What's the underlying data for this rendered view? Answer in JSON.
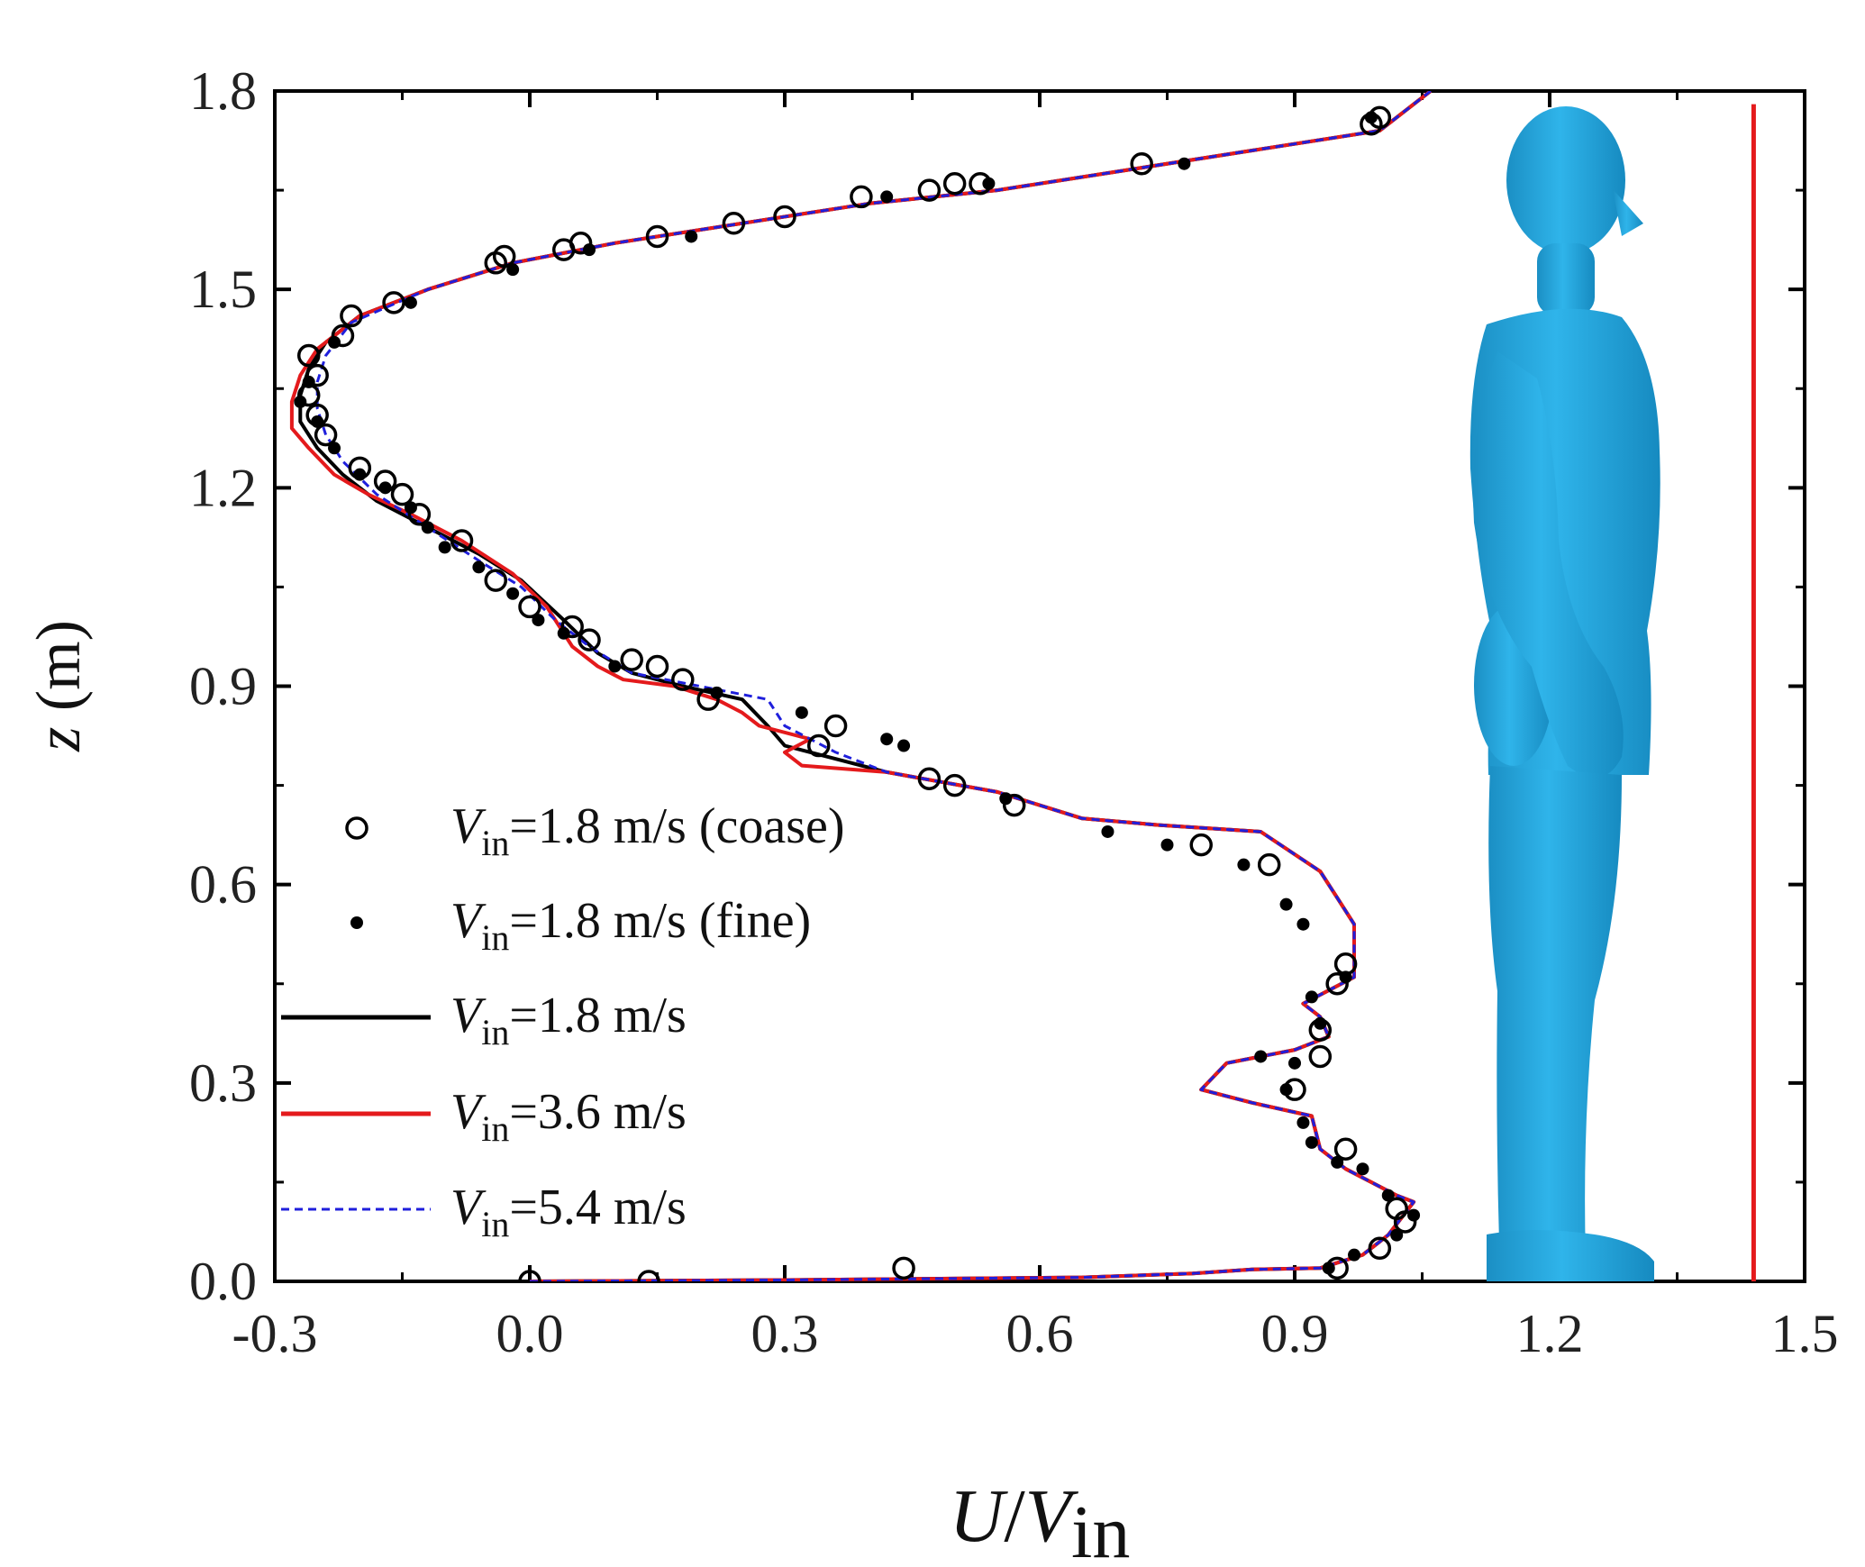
{
  "chart_data": {
    "type": "line",
    "title": "",
    "xlabel": {
      "main": "U",
      "sep": "/",
      "var": "V",
      "sub": "in"
    },
    "ylabel": {
      "var": "z",
      "unit": " (m)"
    },
    "xlim": [
      -0.3,
      1.5
    ],
    "ylim": [
      0.0,
      1.8
    ],
    "xticks": [
      "-0.3",
      "0.0",
      "0.3",
      "0.6",
      "0.9",
      "1.2",
      "1.5"
    ],
    "yticks": [
      "0.0",
      "0.3",
      "0.6",
      "0.9",
      "1.2",
      "1.5",
      "1.8"
    ],
    "legend_position": "lower-left",
    "series": [
      {
        "name": "Vin=1.8 m/s (coase)",
        "label_var": "V",
        "label_sub": "in",
        "label_rest": "=1.8 m/s (coase)",
        "kind": "scatter",
        "marker": "open-circle",
        "color": "#000000",
        "points": [
          [
            0.0,
            0.0
          ],
          [
            0.14,
            0.0
          ],
          [
            0.44,
            0.02
          ],
          [
            0.95,
            0.02
          ],
          [
            1.0,
            0.05
          ],
          [
            1.03,
            0.09
          ],
          [
            1.02,
            0.11
          ],
          [
            0.96,
            0.2
          ],
          [
            0.9,
            0.29
          ],
          [
            0.93,
            0.34
          ],
          [
            0.93,
            0.38
          ],
          [
            0.95,
            0.45
          ],
          [
            0.96,
            0.48
          ],
          [
            0.87,
            0.63
          ],
          [
            0.79,
            0.66
          ],
          [
            0.57,
            0.72
          ],
          [
            0.5,
            0.75
          ],
          [
            0.47,
            0.76
          ],
          [
            0.36,
            0.84
          ],
          [
            0.34,
            0.81
          ],
          [
            0.21,
            0.88
          ],
          [
            0.18,
            0.91
          ],
          [
            0.15,
            0.93
          ],
          [
            0.12,
            0.94
          ],
          [
            0.07,
            0.97
          ],
          [
            0.05,
            0.99
          ],
          [
            0.0,
            1.02
          ],
          [
            -0.04,
            1.06
          ],
          [
            -0.08,
            1.12
          ],
          [
            -0.13,
            1.16
          ],
          [
            -0.15,
            1.19
          ],
          [
            -0.17,
            1.21
          ],
          [
            -0.2,
            1.23
          ],
          [
            -0.24,
            1.28
          ],
          [
            -0.25,
            1.31
          ],
          [
            -0.26,
            1.34
          ],
          [
            -0.25,
            1.37
          ],
          [
            -0.26,
            1.4
          ],
          [
            -0.22,
            1.43
          ],
          [
            -0.21,
            1.46
          ],
          [
            -0.16,
            1.48
          ],
          [
            -0.03,
            1.55
          ],
          [
            -0.04,
            1.54
          ],
          [
            0.04,
            1.56
          ],
          [
            0.06,
            1.57
          ],
          [
            0.15,
            1.58
          ],
          [
            0.24,
            1.6
          ],
          [
            0.3,
            1.61
          ],
          [
            0.39,
            1.64
          ],
          [
            0.47,
            1.65
          ],
          [
            0.5,
            1.66
          ],
          [
            0.53,
            1.66
          ],
          [
            0.72,
            1.69
          ],
          [
            1.0,
            1.76
          ],
          [
            0.99,
            1.75
          ]
        ]
      },
      {
        "name": "Vin=1.8 m/s (fine)",
        "label_var": "V",
        "label_sub": "in",
        "label_rest": "=1.8 m/s (fine)",
        "kind": "scatter",
        "marker": "filled-dot",
        "color": "#000000",
        "points": [
          [
            0.94,
            0.02
          ],
          [
            0.97,
            0.04
          ],
          [
            1.02,
            0.07
          ],
          [
            1.04,
            0.1
          ],
          [
            1.01,
            0.13
          ],
          [
            0.98,
            0.17
          ],
          [
            0.95,
            0.18
          ],
          [
            0.92,
            0.21
          ],
          [
            0.91,
            0.24
          ],
          [
            0.89,
            0.29
          ],
          [
            0.9,
            0.33
          ],
          [
            0.86,
            0.34
          ],
          [
            0.93,
            0.39
          ],
          [
            0.92,
            0.43
          ],
          [
            0.96,
            0.46
          ],
          [
            0.91,
            0.54
          ],
          [
            0.89,
            0.57
          ],
          [
            0.84,
            0.63
          ],
          [
            0.75,
            0.66
          ],
          [
            0.68,
            0.68
          ],
          [
            0.56,
            0.73
          ],
          [
            0.44,
            0.81
          ],
          [
            0.42,
            0.82
          ],
          [
            0.32,
            0.86
          ],
          [
            0.22,
            0.89
          ],
          [
            0.1,
            0.93
          ],
          [
            0.04,
            0.98
          ],
          [
            0.01,
            1.0
          ],
          [
            -0.02,
            1.04
          ],
          [
            -0.06,
            1.08
          ],
          [
            -0.1,
            1.11
          ],
          [
            -0.12,
            1.14
          ],
          [
            -0.14,
            1.17
          ],
          [
            -0.17,
            1.2
          ],
          [
            -0.2,
            1.22
          ],
          [
            -0.23,
            1.26
          ],
          [
            -0.25,
            1.3
          ],
          [
            -0.27,
            1.33
          ],
          [
            -0.26,
            1.36
          ],
          [
            -0.23,
            1.42
          ],
          [
            -0.14,
            1.48
          ],
          [
            -0.02,
            1.53
          ],
          [
            0.07,
            1.56
          ],
          [
            0.19,
            1.58
          ],
          [
            0.42,
            1.64
          ],
          [
            0.54,
            1.66
          ],
          [
            0.77,
            1.69
          ],
          [
            0.99,
            1.76
          ]
        ]
      },
      {
        "name": "Vin=1.8 m/s",
        "label_var": "V",
        "label_sub": "in",
        "label_rest": "=1.8 m/s",
        "kind": "line",
        "dash": "solid",
        "color": "#000000",
        "points": [
          [
            0.0,
            0.0
          ],
          [
            0.3,
            0.002
          ],
          [
            0.65,
            0.006
          ],
          [
            0.78,
            0.012
          ],
          [
            0.85,
            0.018
          ],
          [
            0.93,
            0.02
          ],
          [
            0.98,
            0.04
          ],
          [
            1.01,
            0.07
          ],
          [
            1.04,
            0.12
          ],
          [
            1.02,
            0.13
          ],
          [
            0.96,
            0.17
          ],
          [
            0.93,
            0.2
          ],
          [
            0.92,
            0.25
          ],
          [
            0.85,
            0.27
          ],
          [
            0.79,
            0.29
          ],
          [
            0.82,
            0.33
          ],
          [
            0.9,
            0.35
          ],
          [
            0.94,
            0.37
          ],
          [
            0.93,
            0.4
          ],
          [
            0.91,
            0.42
          ],
          [
            0.94,
            0.44
          ],
          [
            0.97,
            0.46
          ],
          [
            0.97,
            0.5
          ],
          [
            0.97,
            0.54
          ],
          [
            0.95,
            0.58
          ],
          [
            0.93,
            0.62
          ],
          [
            0.86,
            0.68
          ],
          [
            0.74,
            0.69
          ],
          [
            0.65,
            0.7
          ],
          [
            0.55,
            0.74
          ],
          [
            0.42,
            0.77
          ],
          [
            0.36,
            0.79
          ],
          [
            0.3,
            0.81
          ],
          [
            0.28,
            0.84
          ],
          [
            0.25,
            0.88
          ],
          [
            0.18,
            0.9
          ],
          [
            0.12,
            0.92
          ],
          [
            0.08,
            0.95
          ],
          [
            0.04,
            1.0
          ],
          [
            -0.01,
            1.06
          ],
          [
            -0.06,
            1.1
          ],
          [
            -0.12,
            1.14
          ],
          [
            -0.18,
            1.18
          ],
          [
            -0.22,
            1.22
          ],
          [
            -0.25,
            1.26
          ],
          [
            -0.27,
            1.3
          ],
          [
            -0.27,
            1.34
          ],
          [
            -0.26,
            1.38
          ],
          [
            -0.24,
            1.42
          ],
          [
            -0.2,
            1.46
          ],
          [
            -0.12,
            1.5
          ],
          [
            -0.02,
            1.54
          ],
          [
            0.1,
            1.57
          ],
          [
            0.25,
            1.6
          ],
          [
            0.4,
            1.63
          ],
          [
            0.55,
            1.65
          ],
          [
            0.7,
            1.68
          ],
          [
            0.85,
            1.71
          ],
          [
            1.0,
            1.74
          ],
          [
            1.06,
            1.8
          ]
        ]
      },
      {
        "name": "Vin=3.6 m/s",
        "label_var": "V",
        "label_sub": "in",
        "label_rest": "=3.6 m/s",
        "kind": "line",
        "dash": "solid",
        "color": "#e41a1c",
        "points": [
          [
            0.0,
            0.0
          ],
          [
            0.3,
            0.002
          ],
          [
            0.65,
            0.006
          ],
          [
            0.78,
            0.012
          ],
          [
            0.85,
            0.018
          ],
          [
            0.93,
            0.02
          ],
          [
            0.98,
            0.04
          ],
          [
            1.01,
            0.07
          ],
          [
            1.04,
            0.12
          ],
          [
            1.02,
            0.13
          ],
          [
            0.96,
            0.17
          ],
          [
            0.93,
            0.2
          ],
          [
            0.92,
            0.25
          ],
          [
            0.85,
            0.27
          ],
          [
            0.79,
            0.29
          ],
          [
            0.82,
            0.33
          ],
          [
            0.9,
            0.35
          ],
          [
            0.94,
            0.37
          ],
          [
            0.93,
            0.4
          ],
          [
            0.91,
            0.42
          ],
          [
            0.94,
            0.44
          ],
          [
            0.97,
            0.46
          ],
          [
            0.97,
            0.5
          ],
          [
            0.97,
            0.54
          ],
          [
            0.95,
            0.58
          ],
          [
            0.93,
            0.62
          ],
          [
            0.86,
            0.68
          ],
          [
            0.74,
            0.69
          ],
          [
            0.65,
            0.7
          ],
          [
            0.55,
            0.74
          ],
          [
            0.42,
            0.77
          ],
          [
            0.32,
            0.78
          ],
          [
            0.3,
            0.8
          ],
          [
            0.33,
            0.82
          ],
          [
            0.27,
            0.84
          ],
          [
            0.25,
            0.86
          ],
          [
            0.22,
            0.88
          ],
          [
            0.17,
            0.9
          ],
          [
            0.11,
            0.91
          ],
          [
            0.08,
            0.93
          ],
          [
            0.05,
            0.96
          ],
          [
            0.02,
            1.02
          ],
          [
            -0.02,
            1.07
          ],
          [
            -0.08,
            1.12
          ],
          [
            -0.14,
            1.16
          ],
          [
            -0.19,
            1.19
          ],
          [
            -0.23,
            1.22
          ],
          [
            -0.26,
            1.26
          ],
          [
            -0.28,
            1.29
          ],
          [
            -0.28,
            1.33
          ],
          [
            -0.27,
            1.37
          ],
          [
            -0.25,
            1.41
          ],
          [
            -0.2,
            1.46
          ],
          [
            -0.12,
            1.5
          ],
          [
            -0.02,
            1.54
          ],
          [
            0.1,
            1.57
          ],
          [
            0.25,
            1.6
          ],
          [
            0.4,
            1.63
          ],
          [
            0.55,
            1.65
          ],
          [
            0.7,
            1.68
          ],
          [
            0.85,
            1.71
          ],
          [
            1.0,
            1.74
          ],
          [
            1.06,
            1.8
          ]
        ]
      },
      {
        "name": "Vin=5.4 m/s",
        "label_var": "V",
        "label_sub": "in",
        "label_rest": "=5.4 m/s",
        "kind": "line",
        "dash": "dashed",
        "color": "#1f1fdc",
        "points": [
          [
            0.0,
            0.0
          ],
          [
            0.3,
            0.002
          ],
          [
            0.65,
            0.006
          ],
          [
            0.78,
            0.012
          ],
          [
            0.85,
            0.018
          ],
          [
            0.93,
            0.02
          ],
          [
            0.98,
            0.04
          ],
          [
            1.01,
            0.07
          ],
          [
            1.04,
            0.12
          ],
          [
            1.02,
            0.13
          ],
          [
            0.96,
            0.17
          ],
          [
            0.93,
            0.2
          ],
          [
            0.92,
            0.25
          ],
          [
            0.85,
            0.27
          ],
          [
            0.79,
            0.29
          ],
          [
            0.82,
            0.33
          ],
          [
            0.9,
            0.35
          ],
          [
            0.94,
            0.37
          ],
          [
            0.93,
            0.4
          ],
          [
            0.91,
            0.42
          ],
          [
            0.94,
            0.44
          ],
          [
            0.97,
            0.46
          ],
          [
            0.97,
            0.5
          ],
          [
            0.97,
            0.54
          ],
          [
            0.95,
            0.58
          ],
          [
            0.93,
            0.62
          ],
          [
            0.86,
            0.68
          ],
          [
            0.74,
            0.69
          ],
          [
            0.65,
            0.7
          ],
          [
            0.55,
            0.74
          ],
          [
            0.42,
            0.77
          ],
          [
            0.36,
            0.8
          ],
          [
            0.3,
            0.84
          ],
          [
            0.28,
            0.88
          ],
          [
            0.2,
            0.9
          ],
          [
            0.12,
            0.92
          ],
          [
            0.07,
            0.96
          ],
          [
            0.03,
            1.0
          ],
          [
            -0.01,
            1.05
          ],
          [
            -0.06,
            1.09
          ],
          [
            -0.12,
            1.14
          ],
          [
            -0.18,
            1.19
          ],
          [
            -0.22,
            1.24
          ],
          [
            -0.24,
            1.28
          ],
          [
            -0.25,
            1.32
          ],
          [
            -0.25,
            1.36
          ],
          [
            -0.24,
            1.4
          ],
          [
            -0.21,
            1.45
          ],
          [
            -0.12,
            1.5
          ],
          [
            -0.02,
            1.54
          ],
          [
            0.1,
            1.57
          ],
          [
            0.25,
            1.6
          ],
          [
            0.4,
            1.63
          ],
          [
            0.55,
            1.65
          ],
          [
            0.7,
            1.68
          ],
          [
            0.85,
            1.71
          ],
          [
            1.0,
            1.74
          ],
          [
            1.06,
            1.8
          ]
        ]
      }
    ],
    "reference_line": {
      "x": 1.44,
      "y_from": 0.0,
      "y_to": 1.78,
      "color": "#e41a1c"
    },
    "figure_overlay": {
      "description_icon": "human-figure",
      "color": "#1ea0d6"
    }
  }
}
